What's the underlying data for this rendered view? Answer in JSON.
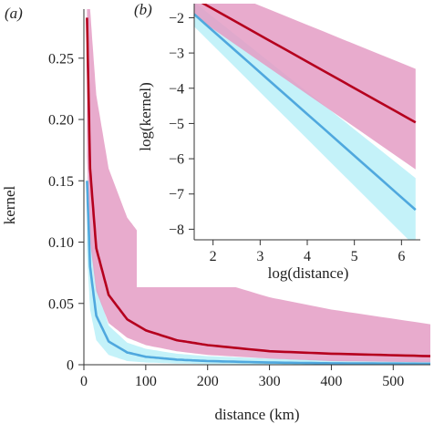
{
  "chart_data": [
    {
      "panel_label": "(a)",
      "type": "line",
      "xlabel": "distance (km)",
      "ylabel": "kernel",
      "xlim": [
        0,
        560
      ],
      "ylim": [
        0,
        0.29
      ],
      "x_ticks": [
        0,
        100,
        200,
        300,
        400,
        500
      ],
      "y_ticks": [
        0,
        0.05,
        0.1,
        0.15,
        0.2,
        0.25
      ],
      "y_tick_labels": [
        "0",
        "0.05",
        "0.10",
        "0.15",
        "0.20",
        "0.25"
      ],
      "series": [
        {
          "color": "#b5001e",
          "band_color": "#e49cc4",
          "x": [
            5,
            10,
            20,
            40,
            70,
            100,
            150,
            200,
            300,
            400,
            560
          ],
          "y": [
            0.283,
            0.16,
            0.095,
            0.057,
            0.037,
            0.028,
            0.02,
            0.016,
            0.011,
            0.009,
            0.007
          ],
          "upper": [
            0.29,
            0.29,
            0.22,
            0.16,
            0.12,
            0.1,
            0.083,
            0.07,
            0.055,
            0.045,
            0.033
          ],
          "lower": [
            0.17,
            0.1,
            0.06,
            0.034,
            0.022,
            0.016,
            0.011,
            0.008,
            0.005,
            0.003,
            0.002
          ]
        },
        {
          "color": "#4fa8de",
          "band_color": "#b0eef7",
          "x": [
            5,
            10,
            20,
            40,
            70,
            100,
            150,
            200,
            300,
            400,
            560
          ],
          "y": [
            0.15,
            0.08,
            0.04,
            0.019,
            0.01,
            0.0065,
            0.0042,
            0.003,
            0.0018,
            0.0012,
            0.0008
          ],
          "upper": [
            0.155,
            0.12,
            0.065,
            0.032,
            0.018,
            0.013,
            0.009,
            0.007,
            0.005,
            0.004,
            0.003
          ],
          "lower": [
            0.09,
            0.045,
            0.02,
            0.008,
            0.003,
            0.0018,
            0.001,
            0.0006,
            0.0003,
            0.0002,
            0.0001
          ]
        }
      ]
    },
    {
      "panel_label": "(b)",
      "type": "line",
      "xlabel": "log(distance)",
      "ylabel": "log(kernel)",
      "xlim": [
        1.6,
        6.4
      ],
      "ylim": [
        -8.3,
        -1.6
      ],
      "x_ticks": [
        2,
        3,
        4,
        5,
        6
      ],
      "y_ticks": [
        -8,
        -7,
        -6,
        -5,
        -4,
        -3,
        -2
      ],
      "series": [
        {
          "color": "#b5001e",
          "band_color": "#e49cc4",
          "x": [
            1.6,
            6.3
          ],
          "y": [
            -1.45,
            -4.97
          ],
          "upper": [
            -0.9,
            -3.45
          ],
          "lower": [
            -1.95,
            -6.3
          ]
        },
        {
          "color": "#4fa8de",
          "band_color": "#b0eef7",
          "x": [
            1.6,
            6.3
          ],
          "y": [
            -1.9,
            -7.45
          ],
          "upper": [
            -1.55,
            -6.55
          ],
          "lower": [
            -2.25,
            -8.5
          ]
        }
      ]
    }
  ]
}
